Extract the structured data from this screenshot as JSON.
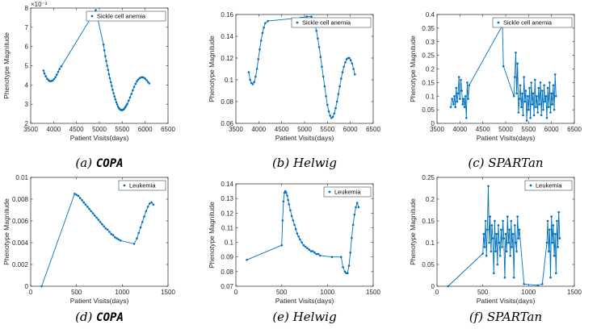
{
  "chart_data": [
    {
      "type": "line",
      "caption_label": "(a)",
      "caption_method": "COPA",
      "xlabel": "Patient Visits(days)",
      "ylabel": "Phenotype Magnitude",
      "xlim": [
        3500,
        6500
      ],
      "ylim": [
        0.002,
        0.008
      ],
      "xticks": [
        3500,
        4000,
        4500,
        5000,
        5500,
        6000,
        6500
      ],
      "xtick_labels": [
        "3500",
        "4000",
        "4500",
        "5000",
        "5500",
        "6000",
        "6500"
      ],
      "yticks": [
        0.002,
        0.003,
        0.004,
        0.005,
        0.006,
        0.007,
        0.008
      ],
      "ytick_labels": [
        "2",
        "3",
        "4",
        "5",
        "6",
        "7",
        "8"
      ],
      "exponent_label": "×10⁻³",
      "legend_position": "top-right",
      "series": [
        {
          "name": "Sickle cell anemia",
          "x": [
            3780,
            3800,
            3830,
            3860,
            3890,
            3920,
            3950,
            3980,
            4010,
            4040,
            4070,
            4100,
            4130,
            4170,
            4920,
            5090,
            5110,
            5130,
            5150,
            5170,
            5190,
            5210,
            5230,
            5250,
            5270,
            5290,
            5310,
            5330,
            5350,
            5370,
            5390,
            5410,
            5430,
            5450,
            5470,
            5490,
            5510,
            5530,
            5550,
            5570,
            5590,
            5610,
            5640,
            5670,
            5700,
            5730,
            5760,
            5790,
            5820,
            5850,
            5880,
            5910,
            5940,
            5970,
            6000,
            6030,
            6060,
            6090
          ],
          "y": [
            0.00475,
            0.0046,
            0.00445,
            0.00432,
            0.00424,
            0.0042,
            0.0042,
            0.00423,
            0.0043,
            0.0044,
            0.00453,
            0.00468,
            0.00483,
            0.00497,
            0.0079,
            0.0061,
            0.0058,
            0.0055,
            0.00525,
            0.005,
            0.00478,
            0.00455,
            0.00435,
            0.00415,
            0.00395,
            0.00375,
            0.00357,
            0.0034,
            0.00325,
            0.0031,
            0.00298,
            0.00287,
            0.00279,
            0.00273,
            0.0027,
            0.00269,
            0.0027,
            0.00273,
            0.00278,
            0.00285,
            0.00293,
            0.00302,
            0.00318,
            0.00335,
            0.00353,
            0.00372,
            0.0039,
            0.00406,
            0.00419,
            0.00428,
            0.00435,
            0.00439,
            0.0044,
            0.00438,
            0.00433,
            0.00425,
            0.00416,
            0.00408
          ]
        }
      ]
    },
    {
      "type": "line",
      "caption_label": "(b)",
      "caption_method": "Helwig",
      "xlabel": "Patient Visits(days)",
      "ylabel": "Phenotype Magnitude",
      "xlim": [
        3500,
        6500
      ],
      "ylim": [
        0.06,
        0.16
      ],
      "xticks": [
        3500,
        4000,
        4500,
        5000,
        5500,
        6000,
        6500
      ],
      "xtick_labels": [
        "3500",
        "4000",
        "4500",
        "5000",
        "5500",
        "6000",
        "6500"
      ],
      "yticks": [
        0.06,
        0.08,
        0.1,
        0.12,
        0.14,
        0.16
      ],
      "ytick_labels": [
        "0.06",
        "0.08",
        "0.1",
        "0.12",
        "0.14",
        "0.16"
      ],
      "legend_position": "top-right",
      "series": [
        {
          "name": "Sickle cell anemia",
          "x": [
            3780,
            3810,
            3840,
            3870,
            3900,
            3930,
            3960,
            3990,
            4020,
            4050,
            4080,
            4110,
            4140,
            4200,
            4920,
            5050,
            5150,
            5200,
            5230,
            5260,
            5290,
            5320,
            5350,
            5380,
            5410,
            5440,
            5470,
            5500,
            5530,
            5560,
            5590,
            5620,
            5650,
            5680,
            5710,
            5740,
            5770,
            5800,
            5830,
            5860,
            5890,
            5920,
            5950,
            5980,
            6010,
            6040,
            6070,
            6100
          ],
          "y": [
            0.107,
            0.1,
            0.097,
            0.096,
            0.098,
            0.103,
            0.11,
            0.119,
            0.128,
            0.136,
            0.143,
            0.148,
            0.152,
            0.154,
            0.157,
            0.158,
            0.158,
            0.155,
            0.151,
            0.145,
            0.138,
            0.13,
            0.121,
            0.112,
            0.103,
            0.094,
            0.085,
            0.077,
            0.071,
            0.067,
            0.065,
            0.066,
            0.069,
            0.074,
            0.08,
            0.087,
            0.094,
            0.101,
            0.107,
            0.112,
            0.116,
            0.119,
            0.12,
            0.12,
            0.118,
            0.115,
            0.11,
            0.105
          ]
        }
      ]
    },
    {
      "type": "line",
      "caption_label": "(c)",
      "caption_method": "SPARTan",
      "xlabel": "Patient Visits(days)",
      "ylabel": "Phenotype Magnitude",
      "xlim": [
        3500,
        6500
      ],
      "ylim": [
        0,
        0.4
      ],
      "xticks": [
        3500,
        4000,
        4500,
        5000,
        5500,
        6000,
        6500
      ],
      "xtick_labels": [
        "3500",
        "4000",
        "4500",
        "5000",
        "5500",
        "6000",
        "6500"
      ],
      "yticks": [
        0,
        0.05,
        0.1,
        0.15,
        0.2,
        0.25,
        0.3,
        0.35,
        0.4
      ],
      "ytick_labels": [
        "0",
        "0.05",
        "0.1",
        "0.15",
        "0.2",
        "0.25",
        "0.3",
        "0.35",
        "0.4"
      ],
      "legend_position": "top-right",
      "series": [
        {
          "name": "Sickle cell anemia",
          "x": [
            3800,
            3830,
            3860,
            3880,
            3900,
            3920,
            3940,
            3960,
            3980,
            4000,
            4020,
            4040,
            4060,
            4080,
            4100,
            4120,
            4140,
            4160,
            4180,
            4200,
            4930,
            4950,
            5180,
            5200,
            5220,
            5240,
            5260,
            5280,
            5300,
            5320,
            5340,
            5360,
            5380,
            5400,
            5420,
            5440,
            5460,
            5480,
            5500,
            5520,
            5540,
            5560,
            5580,
            5600,
            5620,
            5640,
            5660,
            5680,
            5700,
            5720,
            5740,
            5760,
            5780,
            5800,
            5820,
            5840,
            5860,
            5880,
            5900,
            5920,
            5940,
            5960,
            5980,
            6000,
            6020,
            6040,
            6060,
            6080,
            6100
          ],
          "y": [
            0.06,
            0.09,
            0.07,
            0.1,
            0.06,
            0.13,
            0.08,
            0.11,
            0.17,
            0.09,
            0.16,
            0.12,
            0.07,
            0.09,
            0.06,
            0.1,
            0.02,
            0.15,
            0.09,
            0.14,
            0.36,
            0.21,
            0.1,
            0.17,
            0.26,
            0.11,
            0.22,
            0.04,
            0.09,
            0.14,
            0.06,
            0.11,
            0.03,
            0.17,
            0.08,
            0.12,
            0.01,
            0.1,
            0.05,
            0.13,
            0.02,
            0.15,
            0.07,
            0.11,
            0.03,
            0.16,
            0.06,
            0.1,
            0.04,
            0.13,
            0.07,
            0.15,
            0.03,
            0.12,
            0.05,
            0.14,
            0.08,
            0.1,
            0.02,
            0.13,
            0.06,
            0.15,
            0.04,
            0.11,
            0.07,
            0.14,
            0.05,
            0.18,
            0.1
          ]
        }
      ]
    },
    {
      "type": "line",
      "caption_label": "(d)",
      "caption_method": "COPA",
      "xlabel": "Patient Visits(days)",
      "ylabel": "Phenotype Magnitude",
      "xlim": [
        0,
        1500
      ],
      "ylim": [
        0,
        0.01
      ],
      "xticks": [
        0,
        500,
        1000,
        1500
      ],
      "xtick_labels": [
        "0",
        "500",
        "1000",
        "1500"
      ],
      "yticks": [
        0,
        0.002,
        0.004,
        0.006,
        0.008,
        0.01
      ],
      "ytick_labels": [
        "0",
        "0.002",
        "0.004",
        "0.006",
        "0.008",
        "0.01"
      ],
      "legend_position": "top-right",
      "series": [
        {
          "name": "Leukemia",
          "x": [
            120,
            480,
            500,
            520,
            540,
            560,
            580,
            600,
            620,
            640,
            660,
            680,
            700,
            720,
            740,
            760,
            780,
            800,
            820,
            840,
            860,
            880,
            900,
            920,
            940,
            960,
            980,
            1130,
            1160,
            1180,
            1200,
            1220,
            1240,
            1260,
            1280,
            1300,
            1320,
            1340
          ],
          "y": [
            0,
            0.0085,
            0.0084,
            0.0083,
            0.0081,
            0.0079,
            0.0077,
            0.0075,
            0.0073,
            0.0071,
            0.0069,
            0.0067,
            0.0065,
            0.0063,
            0.0061,
            0.0059,
            0.0057,
            0.0055,
            0.0053,
            0.0052,
            0.005,
            0.0048,
            0.0047,
            0.0045,
            0.0044,
            0.0043,
            0.0042,
            0.0039,
            0.0044,
            0.0049,
            0.0054,
            0.0059,
            0.0064,
            0.0069,
            0.0073,
            0.0076,
            0.0077,
            0.0075
          ]
        }
      ]
    },
    {
      "type": "line",
      "caption_label": "(e)",
      "caption_method": "Helwig",
      "xlabel": "Patient Visits(days)",
      "ylabel": "Phenotype Magnitude",
      "xlim": [
        0,
        1500
      ],
      "ylim": [
        0.07,
        0.14
      ],
      "xticks": [
        0,
        500,
        1000,
        1500
      ],
      "xtick_labels": [
        "0",
        "500",
        "1000",
        "1500"
      ],
      "yticks": [
        0.07,
        0.08,
        0.09,
        0.1,
        0.11,
        0.12,
        0.13,
        0.14
      ],
      "ytick_labels": [
        "0.07",
        "0.08",
        "0.09",
        "0.1",
        "0.11",
        "0.12",
        "0.13",
        "0.14"
      ],
      "legend_position": "top-right",
      "series": [
        {
          "name": "Leukemia",
          "x": [
            120,
            500,
            510,
            520,
            530,
            540,
            550,
            560,
            570,
            580,
            595,
            610,
            625,
            640,
            655,
            670,
            685,
            700,
            720,
            740,
            760,
            780,
            800,
            820,
            840,
            860,
            880,
            900,
            920,
            1050,
            1150,
            1170,
            1190,
            1205,
            1220,
            1235,
            1250,
            1265,
            1280,
            1295,
            1310,
            1325,
            1340
          ],
          "y": [
            0.088,
            0.098,
            0.115,
            0.128,
            0.134,
            0.135,
            0.134,
            0.132,
            0.129,
            0.126,
            0.122,
            0.118,
            0.115,
            0.112,
            0.109,
            0.106,
            0.104,
            0.102,
            0.1,
            0.098,
            0.097,
            0.096,
            0.095,
            0.094,
            0.094,
            0.093,
            0.092,
            0.092,
            0.091,
            0.09,
            0.09,
            0.083,
            0.08,
            0.079,
            0.079,
            0.084,
            0.093,
            0.103,
            0.112,
            0.119,
            0.124,
            0.127,
            0.124
          ]
        }
      ]
    },
    {
      "type": "line",
      "caption_label": "(f)",
      "caption_method": "SPARTan",
      "xlabel": "Patient Visits(days)",
      "ylabel": "Phenotype Magnitude",
      "xlim": [
        0,
        1500
      ],
      "ylim": [
        0,
        0.25
      ],
      "xticks": [
        0,
        500,
        1000,
        1500
      ],
      "xtick_labels": [
        "0",
        "500",
        "1000",
        "1500"
      ],
      "yticks": [
        0,
        0.05,
        0.1,
        0.15,
        0.2,
        0.25
      ],
      "ytick_labels": [
        "0",
        "0.05",
        "0.1",
        "0.15",
        "0.2",
        "0.25"
      ],
      "legend_position": "top-right",
      "series": [
        {
          "name": "Leukemia",
          "x": [
            120,
            500,
            510,
            520,
            530,
            540,
            550,
            560,
            570,
            580,
            590,
            600,
            610,
            620,
            630,
            640,
            650,
            660,
            670,
            680,
            690,
            700,
            710,
            720,
            730,
            740,
            750,
            760,
            770,
            780,
            790,
            800,
            810,
            820,
            830,
            840,
            850,
            860,
            870,
            880,
            890,
            900,
            950,
            1100,
            1150,
            1200,
            1210,
            1220,
            1230,
            1240,
            1250,
            1260,
            1270,
            1280,
            1290,
            1300,
            1310,
            1320,
            1330,
            1340
          ],
          "y": [
            0,
            0.075,
            0.12,
            0.09,
            0.15,
            0.07,
            0.13,
            0.23,
            0.1,
            0.16,
            0.08,
            0.14,
            0.11,
            0.03,
            0.15,
            0.08,
            0.12,
            0.05,
            0.14,
            0.1,
            0.07,
            0.13,
            0.09,
            0.15,
            0.11,
            0.02,
            0.12,
            0.08,
            0.16,
            0.1,
            0.13,
            0.07,
            0.15,
            0.09,
            0.12,
            0.02,
            0.14,
            0.1,
            0.08,
            0.16,
            0.11,
            0.13,
            0.005,
            0.002,
            0.005,
            0.1,
            0.15,
            0.08,
            0.13,
            0.02,
            0.16,
            0.1,
            0.14,
            0.07,
            0.12,
            0.03,
            0.15,
            0.09,
            0.17,
            0.11
          ]
        }
      ]
    }
  ]
}
